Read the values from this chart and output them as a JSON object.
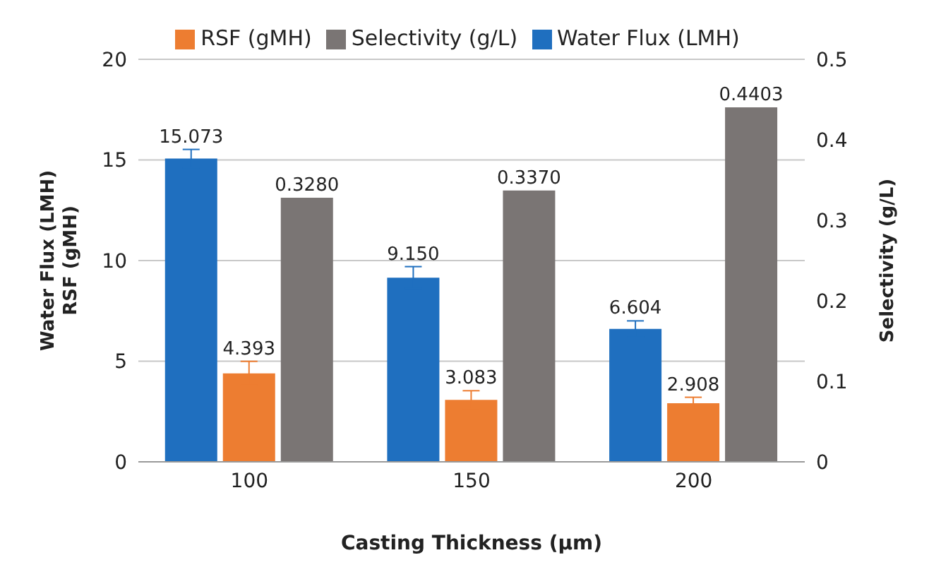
{
  "chart_data": {
    "type": "bar",
    "xlabel": "Casting Thickness (µm)",
    "ylabel": "Water Flux (LMH)\nRSF (gMH)",
    "y2label": "Selectivity (g/L)",
    "categories": [
      "100",
      "150",
      "200"
    ],
    "series": [
      {
        "name": "Water Flux (LMH)",
        "color": "#1f6fbf",
        "values": [
          15.073,
          9.15,
          6.604
        ],
        "errors": [
          0.45,
          0.55,
          0.4
        ],
        "value_labels": [
          "15.073",
          "9.150",
          "6.604"
        ]
      },
      {
        "name": "RSF (gMH)",
        "color": "#ed7d31",
        "values": [
          4.393,
          3.083,
          2.908
        ],
        "errors": [
          0.6,
          0.45,
          0.3
        ],
        "value_labels": [
          "4.393",
          "3.083",
          "2.908"
        ]
      },
      {
        "name": "Selectivity (g/L)",
        "color": "#7a7574",
        "axis": "y2",
        "values": [
          0.328,
          0.337,
          0.4403
        ],
        "value_labels": [
          "0.3280",
          "0.3370",
          "0.4403"
        ]
      }
    ],
    "ylim": [
      0,
      20
    ],
    "yticks": [
      0,
      5,
      10,
      15,
      20
    ],
    "y2lim": [
      0,
      0.5
    ],
    "y2ticks": [
      0,
      0.1,
      0.2,
      0.3,
      0.4,
      0.5
    ],
    "grid": "y",
    "legend": "top"
  }
}
